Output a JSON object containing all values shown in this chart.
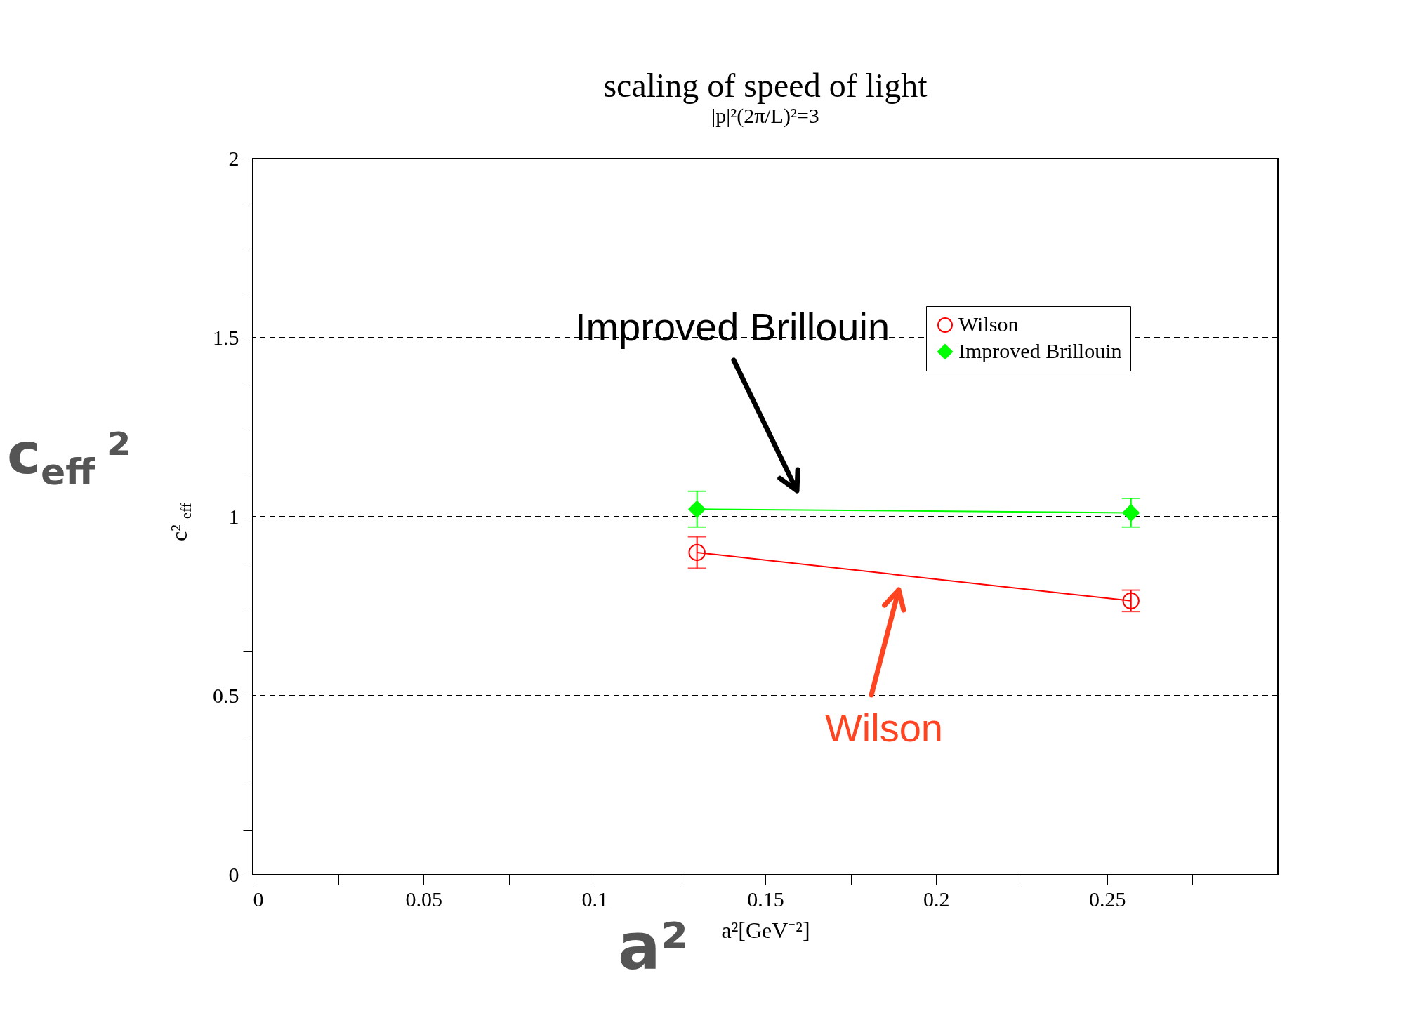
{
  "chart_data": {
    "type": "scatter",
    "title": "scaling of speed of light",
    "subtitle": "|p|²(2π/L)²=3",
    "xlabel": "a²[GeV⁻²]",
    "ylabel": "c²$_{eff}$",
    "x": [
      0.13,
      0.257
    ],
    "series": [
      {
        "name": "Wilson",
        "type": "line",
        "color": "#ff0000",
        "marker": "circle",
        "values": [
          0.9,
          0.765
        ],
        "errors": [
          0.044,
          0.03
        ]
      },
      {
        "name": "Improved Brillouin",
        "type": "line",
        "color": "#00ff00",
        "marker": "diamond",
        "values": [
          1.021,
          1.011
        ],
        "errors": [
          0.05,
          0.04
        ]
      }
    ],
    "xlim": [
      0,
      0.3
    ],
    "ylim": [
      0,
      2
    ],
    "xticks": [
      0,
      {
        "value": 0.025,
        "label": null
      },
      0.05,
      {
        "value": 0.075,
        "label": null
      },
      0.1,
      {
        "value": 0.125,
        "label": null
      },
      0.15,
      {
        "value": 0.175,
        "label": null
      },
      0.2,
      {
        "value": 0.225,
        "label": null
      },
      0.25,
      {
        "value": 0.275,
        "label": null
      }
    ],
    "yticks": [
      0,
      {
        "value": 0.125,
        "label": null
      },
      {
        "value": 0.25,
        "label": null
      },
      {
        "value": 0.375,
        "label": null
      },
      0.5,
      {
        "value": 0.625,
        "label": null
      },
      {
        "value": 0.75,
        "label": null
      },
      {
        "value": 0.875,
        "label": null
      },
      1,
      {
        "value": 1.125,
        "label": null
      },
      {
        "value": 1.25,
        "label": null
      },
      {
        "value": 1.375,
        "label": null
      },
      1.5,
      {
        "value": 1.625,
        "label": null
      },
      {
        "value": 1.75,
        "label": null
      },
      {
        "value": 1.875,
        "label": null
      },
      2
    ],
    "ref_lines": [
      {
        "axis": "y",
        "value": 0.5,
        "line_style": "dashed",
        "color": "#000000"
      },
      {
        "axis": "y",
        "value": 1,
        "line_style": "dashed",
        "color": "#000000"
      },
      {
        "axis": "y",
        "value": 1.5,
        "line_style": "dashed",
        "color": "#000000"
      }
    ],
    "annotations": [
      "Improved Brillouin",
      "Wilson",
      "c$_{eff}$²",
      "a²"
    ],
    "grid": false,
    "legend": "top right"
  }
}
